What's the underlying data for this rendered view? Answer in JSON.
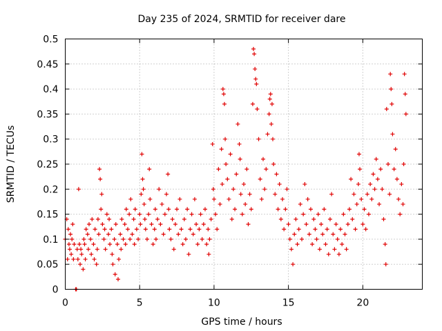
{
  "chart_data": {
    "type": "scatter",
    "title": "Day 235 of 2024, SRMTID for receiver dare",
    "xlabel": "GPS time / hours",
    "ylabel": "SRMTID / TECUs",
    "xlim": [
      0,
      24
    ],
    "ylim": [
      0,
      0.5
    ],
    "xticks": [
      0,
      5,
      10,
      15,
      20
    ],
    "xtick_labels": [
      "0",
      "5",
      "10",
      "15",
      "20"
    ],
    "yticks": [
      0,
      0.05,
      0.1,
      0.15,
      0.2,
      0.25,
      0.3,
      0.35,
      0.4,
      0.45,
      0.5
    ],
    "ytick_labels": [
      "0",
      "0.05",
      "0.1",
      "0.15",
      "0.2",
      "0.25",
      "0.3",
      "0.35",
      "0.4",
      "0.45",
      "0.5"
    ],
    "grid": true,
    "marker": "+",
    "color": "#e00000",
    "series": [
      {
        "name": "SRMTID",
        "points": [
          [
            0.0,
            0.1
          ],
          [
            0.1,
            0.14
          ],
          [
            0.15,
            0.06
          ],
          [
            0.2,
            0.12
          ],
          [
            0.25,
            0.09
          ],
          [
            0.3,
            0.08
          ],
          [
            0.35,
            0.11
          ],
          [
            0.4,
            0.07
          ],
          [
            0.45,
            0.1
          ],
          [
            0.5,
            0.13
          ],
          [
            0.55,
            0.06
          ],
          [
            0.6,
            0.09
          ],
          [
            0.7,
            0.0
          ],
          [
            0.75,
            0.0
          ],
          [
            0.8,
            0.08
          ],
          [
            0.85,
            0.06
          ],
          [
            0.9,
            0.2
          ],
          [
            0.95,
            0.09
          ],
          [
            1.0,
            0.05
          ],
          [
            1.05,
            0.08
          ],
          [
            1.1,
            0.07
          ],
          [
            1.2,
            0.04
          ],
          [
            1.25,
            0.1
          ],
          [
            1.3,
            0.09
          ],
          [
            1.35,
            0.06
          ],
          [
            1.4,
            0.12
          ],
          [
            1.5,
            0.11
          ],
          [
            1.55,
            0.08
          ],
          [
            1.6,
            0.13
          ],
          [
            1.7,
            0.1
          ],
          [
            1.75,
            0.07
          ],
          [
            1.8,
            0.14
          ],
          [
            1.9,
            0.09
          ],
          [
            1.95,
            0.06
          ],
          [
            2.0,
            0.12
          ],
          [
            2.1,
            0.05
          ],
          [
            2.15,
            0.08
          ],
          [
            2.2,
            0.14
          ],
          [
            2.25,
            0.11
          ],
          [
            2.3,
            0.24
          ],
          [
            2.35,
            0.22
          ],
          [
            2.4,
            0.16
          ],
          [
            2.45,
            0.19
          ],
          [
            2.5,
            0.13
          ],
          [
            2.6,
            0.1
          ],
          [
            2.65,
            0.12
          ],
          [
            2.7,
            0.08
          ],
          [
            2.8,
            0.15
          ],
          [
            2.9,
            0.11
          ],
          [
            2.95,
            0.14
          ],
          [
            3.0,
            0.09
          ],
          [
            3.1,
            0.12
          ],
          [
            3.15,
            0.07
          ],
          [
            3.2,
            0.05
          ],
          [
            3.3,
            0.1
          ],
          [
            3.35,
            0.03
          ],
          [
            3.4,
            0.13
          ],
          [
            3.5,
            0.09
          ],
          [
            3.55,
            0.02
          ],
          [
            3.6,
            0.06
          ],
          [
            3.7,
            0.11
          ],
          [
            3.75,
            0.08
          ],
          [
            3.8,
            0.14
          ],
          [
            3.9,
            0.1
          ],
          [
            4.0,
            0.13
          ],
          [
            4.05,
            0.09
          ],
          [
            4.1,
            0.16
          ],
          [
            4.2,
            0.12
          ],
          [
            4.3,
            0.15
          ],
          [
            4.35,
            0.1
          ],
          [
            4.4,
            0.18
          ],
          [
            4.5,
            0.11
          ],
          [
            4.6,
            0.14
          ],
          [
            4.65,
            0.09
          ],
          [
            4.7,
            0.16
          ],
          [
            4.8,
            0.12
          ],
          [
            4.9,
            0.1
          ],
          [
            5.0,
            0.15
          ],
          [
            5.05,
            0.13
          ],
          [
            5.1,
            0.19
          ],
          [
            5.15,
            0.27
          ],
          [
            5.2,
            0.22
          ],
          [
            5.25,
            0.2
          ],
          [
            5.3,
            0.17
          ],
          [
            5.35,
            0.14
          ],
          [
            5.4,
            0.12
          ],
          [
            5.5,
            0.1
          ],
          [
            5.6,
            0.15
          ],
          [
            5.65,
            0.24
          ],
          [
            5.7,
            0.18
          ],
          [
            5.8,
            0.13
          ],
          [
            5.9,
            0.09
          ],
          [
            6.0,
            0.12
          ],
          [
            6.05,
            0.16
          ],
          [
            6.1,
            0.1
          ],
          [
            6.2,
            0.14
          ],
          [
            6.3,
            0.2
          ],
          [
            6.4,
            0.13
          ],
          [
            6.5,
            0.17
          ],
          [
            6.6,
            0.11
          ],
          [
            6.7,
            0.15
          ],
          [
            6.8,
            0.19
          ],
          [
            6.9,
            0.23
          ],
          [
            6.95,
            0.16
          ],
          [
            7.0,
            0.12
          ],
          [
            7.1,
            0.1
          ],
          [
            7.2,
            0.14
          ],
          [
            7.3,
            0.08
          ],
          [
            7.4,
            0.13
          ],
          [
            7.5,
            0.16
          ],
          [
            7.6,
            0.11
          ],
          [
            7.7,
            0.18
          ],
          [
            7.8,
            0.12
          ],
          [
            7.9,
            0.09
          ],
          [
            8.0,
            0.14
          ],
          [
            8.1,
            0.1
          ],
          [
            8.2,
            0.16
          ],
          [
            8.3,
            0.07
          ],
          [
            8.4,
            0.12
          ],
          [
            8.5,
            0.15
          ],
          [
            8.6,
            0.11
          ],
          [
            8.7,
            0.18
          ],
          [
            8.8,
            0.13
          ],
          [
            8.9,
            0.09
          ],
          [
            9.0,
            0.12
          ],
          [
            9.1,
            0.15
          ],
          [
            9.2,
            0.1
          ],
          [
            9.3,
            0.13
          ],
          [
            9.4,
            0.16
          ],
          [
            9.5,
            0.09
          ],
          [
            9.6,
            0.12
          ],
          [
            9.65,
            0.07
          ],
          [
            9.7,
            0.1
          ],
          [
            9.8,
            0.14
          ],
          [
            9.9,
            0.29
          ],
          [
            9.95,
            0.2
          ],
          [
            10.0,
            0.18
          ],
          [
            10.1,
            0.15
          ],
          [
            10.2,
            0.12
          ],
          [
            10.3,
            0.24
          ],
          [
            10.4,
            0.17
          ],
          [
            10.5,
            0.28
          ],
          [
            10.55,
            0.21
          ],
          [
            10.6,
            0.4
          ],
          [
            10.65,
            0.39
          ],
          [
            10.7,
            0.37
          ],
          [
            10.75,
            0.3
          ],
          [
            10.8,
            0.25
          ],
          [
            10.9,
            0.22
          ],
          [
            11.0,
            0.18
          ],
          [
            11.1,
            0.27
          ],
          [
            11.2,
            0.14
          ],
          [
            11.3,
            0.2
          ],
          [
            11.4,
            0.16
          ],
          [
            11.5,
            0.23
          ],
          [
            11.6,
            0.33
          ],
          [
            11.7,
            0.29
          ],
          [
            11.75,
            0.26
          ],
          [
            11.8,
            0.19
          ],
          [
            11.9,
            0.15
          ],
          [
            12.0,
            0.21
          ],
          [
            12.1,
            0.17
          ],
          [
            12.2,
            0.24
          ],
          [
            12.3,
            0.13
          ],
          [
            12.4,
            0.19
          ],
          [
            12.5,
            0.16
          ],
          [
            12.6,
            0.37
          ],
          [
            12.65,
            0.48
          ],
          [
            12.7,
            0.47
          ],
          [
            12.75,
            0.44
          ],
          [
            12.8,
            0.42
          ],
          [
            12.85,
            0.41
          ],
          [
            12.9,
            0.36
          ],
          [
            13.0,
            0.3
          ],
          [
            13.1,
            0.22
          ],
          [
            13.2,
            0.18
          ],
          [
            13.3,
            0.26
          ],
          [
            13.4,
            0.2
          ],
          [
            13.5,
            0.24
          ],
          [
            13.6,
            0.31
          ],
          [
            13.7,
            0.35
          ],
          [
            13.75,
            0.38
          ],
          [
            13.8,
            0.39
          ],
          [
            13.85,
            0.33
          ],
          [
            13.9,
            0.37
          ],
          [
            13.95,
            0.3
          ],
          [
            14.0,
            0.25
          ],
          [
            14.1,
            0.19
          ],
          [
            14.2,
            0.23
          ],
          [
            14.3,
            0.16
          ],
          [
            14.4,
            0.21
          ],
          [
            14.5,
            0.14
          ],
          [
            14.6,
            0.18
          ],
          [
            14.7,
            0.12
          ],
          [
            14.8,
            0.16
          ],
          [
            14.9,
            0.2
          ],
          [
            15.0,
            0.13
          ],
          [
            15.1,
            0.1
          ],
          [
            15.2,
            0.08
          ],
          [
            15.3,
            0.05
          ],
          [
            15.4,
            0.11
          ],
          [
            15.5,
            0.14
          ],
          [
            15.6,
            0.09
          ],
          [
            15.7,
            0.12
          ],
          [
            15.8,
            0.17
          ],
          [
            15.9,
            0.1
          ],
          [
            16.0,
            0.15
          ],
          [
            16.1,
            0.21
          ],
          [
            16.2,
            0.13
          ],
          [
            16.3,
            0.18
          ],
          [
            16.4,
            0.11
          ],
          [
            16.5,
            0.16
          ],
          [
            16.6,
            0.09
          ],
          [
            16.7,
            0.14
          ],
          [
            16.8,
            0.12
          ],
          [
            16.9,
            0.1
          ],
          [
            17.0,
            0.15
          ],
          [
            17.1,
            0.08
          ],
          [
            17.2,
            0.13
          ],
          [
            17.3,
            0.11
          ],
          [
            17.4,
            0.16
          ],
          [
            17.5,
            0.09
          ],
          [
            17.6,
            0.12
          ],
          [
            17.7,
            0.07
          ],
          [
            17.8,
            0.14
          ],
          [
            17.9,
            0.19
          ],
          [
            18.0,
            0.11
          ],
          [
            18.1,
            0.08
          ],
          [
            18.2,
            0.13
          ],
          [
            18.3,
            0.1
          ],
          [
            18.4,
            0.07
          ],
          [
            18.5,
            0.12
          ],
          [
            18.6,
            0.09
          ],
          [
            18.7,
            0.15
          ],
          [
            18.8,
            0.11
          ],
          [
            18.9,
            0.08
          ],
          [
            19.0,
            0.13
          ],
          [
            19.1,
            0.16
          ],
          [
            19.2,
            0.22
          ],
          [
            19.3,
            0.14
          ],
          [
            19.4,
            0.19
          ],
          [
            19.5,
            0.12
          ],
          [
            19.6,
            0.17
          ],
          [
            19.7,
            0.21
          ],
          [
            19.75,
            0.27
          ],
          [
            19.8,
            0.24
          ],
          [
            19.9,
            0.18
          ],
          [
            20.0,
            0.13
          ],
          [
            20.1,
            0.16
          ],
          [
            20.2,
            0.12
          ],
          [
            20.3,
            0.19
          ],
          [
            20.4,
            0.15
          ],
          [
            20.5,
            0.21
          ],
          [
            20.6,
            0.18
          ],
          [
            20.7,
            0.23
          ],
          [
            20.8,
            0.2
          ],
          [
            20.9,
            0.26
          ],
          [
            21.0,
            0.22
          ],
          [
            21.1,
            0.17
          ],
          [
            21.2,
            0.24
          ],
          [
            21.3,
            0.2
          ],
          [
            21.4,
            0.14
          ],
          [
            21.5,
            0.09
          ],
          [
            21.55,
            0.05
          ],
          [
            21.6,
            0.36
          ],
          [
            21.7,
            0.25
          ],
          [
            21.8,
            0.19
          ],
          [
            21.85,
            0.43
          ],
          [
            21.9,
            0.4
          ],
          [
            21.95,
            0.37
          ],
          [
            22.0,
            0.31
          ],
          [
            22.1,
            0.24
          ],
          [
            22.2,
            0.28
          ],
          [
            22.3,
            0.22
          ],
          [
            22.4,
            0.18
          ],
          [
            22.5,
            0.15
          ],
          [
            22.6,
            0.21
          ],
          [
            22.7,
            0.17
          ],
          [
            22.75,
            0.25
          ],
          [
            22.8,
            0.43
          ],
          [
            22.85,
            0.39
          ],
          [
            22.9,
            0.35
          ]
        ]
      }
    ]
  }
}
